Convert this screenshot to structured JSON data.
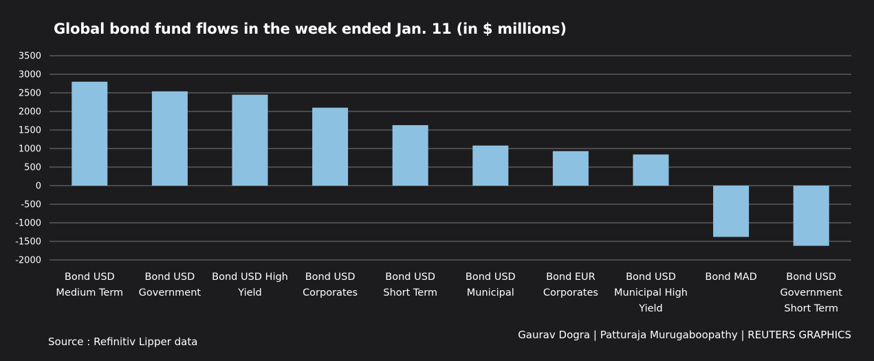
{
  "chart_data": {
    "type": "bar",
    "title": "Global bond fund flows in the week ended Jan. 11 (in $ millions)",
    "categories": [
      [
        "Bond USD",
        "Medium Term"
      ],
      [
        "Bond USD",
        "Government"
      ],
      [
        "Bond USD High",
        "Yield"
      ],
      [
        "Bond USD",
        "Corporates"
      ],
      [
        "Bond USD",
        "Short Term"
      ],
      [
        "Bond USD",
        "Municipal"
      ],
      [
        "Bond EUR",
        "Corporates"
      ],
      [
        "Bond USD",
        "Municipal High",
        "Yield"
      ],
      [
        "Bond MAD"
      ],
      [
        "Bond USD",
        "Government",
        "Short Term"
      ]
    ],
    "values": [
      2800,
      2540,
      2450,
      2100,
      1630,
      1080,
      930,
      840,
      -1380,
      -1620
    ],
    "ylim": [
      -2000,
      3500
    ],
    "yticks": [
      3500,
      3000,
      2500,
      2000,
      1500,
      1000,
      500,
      0,
      -500,
      -1000,
      -1500,
      -2000
    ],
    "xlabel": "",
    "ylabel": "",
    "grid": true,
    "colors": {
      "bar": "#8dc1e1",
      "grid": "#7a7a7a",
      "background": "#1c1c1e",
      "text": "#ffffff"
    }
  },
  "source": "Source : Refinitiv Lipper data",
  "credits": "Gaurav Dogra | Patturaja Murugaboopathy | REUTERS GRAPHICS"
}
